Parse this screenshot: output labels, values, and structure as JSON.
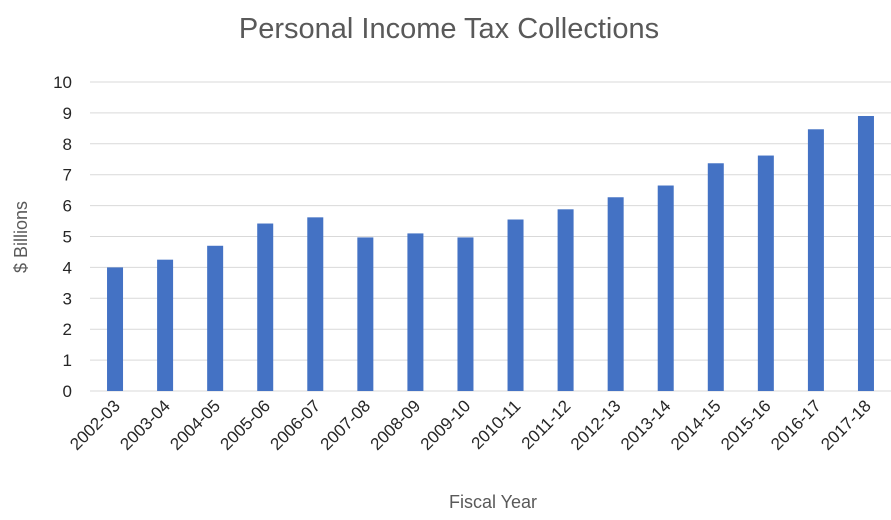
{
  "chart_data": {
    "type": "bar",
    "title": "Personal Income Tax Collections",
    "xlabel": "Fiscal Year",
    "ylabel": "$ Billions",
    "ylim": [
      0,
      10
    ],
    "y_ticks": [
      "0",
      "1",
      "2",
      "3",
      "4",
      "5",
      "6",
      "7",
      "8",
      "9",
      "10"
    ],
    "grid": true,
    "legend": "none",
    "bar_color": "#4472c4",
    "categories": [
      "2002-03",
      "2003-04",
      "2004-05",
      "2005-06",
      "2006-07",
      "2007-08",
      "2008-09",
      "2009-10",
      "2010-11",
      "2011-12",
      "2012-13",
      "2013-14",
      "2014-15",
      "2015-16",
      "2016-17",
      "2017-18"
    ],
    "values": [
      4.0,
      4.25,
      4.7,
      5.42,
      5.62,
      4.97,
      5.1,
      4.97,
      5.55,
      5.88,
      6.27,
      6.65,
      7.37,
      7.62,
      8.47,
      8.9
    ]
  }
}
